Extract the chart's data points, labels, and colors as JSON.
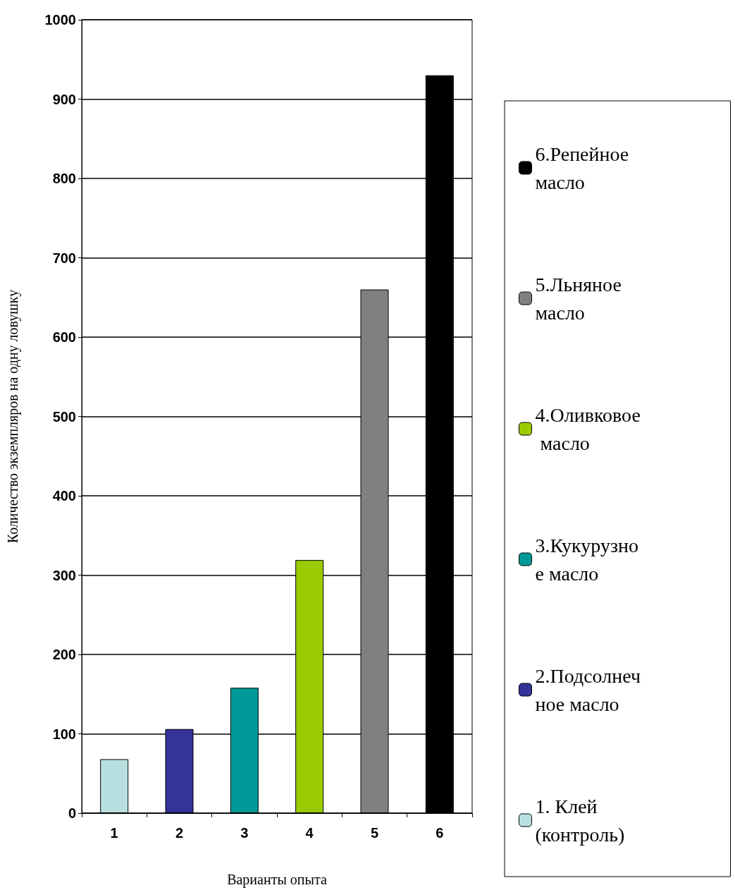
{
  "chart_data": {
    "type": "bar",
    "xlabel": "Варианты опыта",
    "ylabel": "Количество экземпляров на одну ловушку",
    "categories": [
      "1",
      "2",
      "3",
      "4",
      "5",
      "6"
    ],
    "series": [
      {
        "name": "1. Клей (контроль)",
        "color": "#b8e0e0",
        "values": [
          68,
          null,
          null,
          null,
          null,
          null
        ]
      },
      {
        "name": "2.Подсолнечное масло",
        "color": "#333399",
        "values": [
          null,
          106,
          null,
          null,
          null,
          null
        ]
      },
      {
        "name": "3.Кукурузное масло",
        "color": "#009999",
        "values": [
          null,
          null,
          158,
          null,
          null,
          null
        ]
      },
      {
        "name": "4.Оливковое масло",
        "color": "#99cc00",
        "values": [
          null,
          null,
          null,
          319,
          null,
          null
        ]
      },
      {
        "name": "5.Льняное масло",
        "color": "#808080",
        "values": [
          null,
          null,
          null,
          null,
          660,
          null
        ]
      },
      {
        "name": "6.Репейное масло",
        "color": "#000000",
        "values": [
          null,
          null,
          null,
          null,
          null,
          930
        ]
      }
    ],
    "ylim": [
      0,
      1000
    ],
    "yticks": [
      0,
      100,
      200,
      300,
      400,
      500,
      600,
      700,
      800,
      900,
      1000
    ],
    "grid": "y",
    "legend": "right"
  }
}
